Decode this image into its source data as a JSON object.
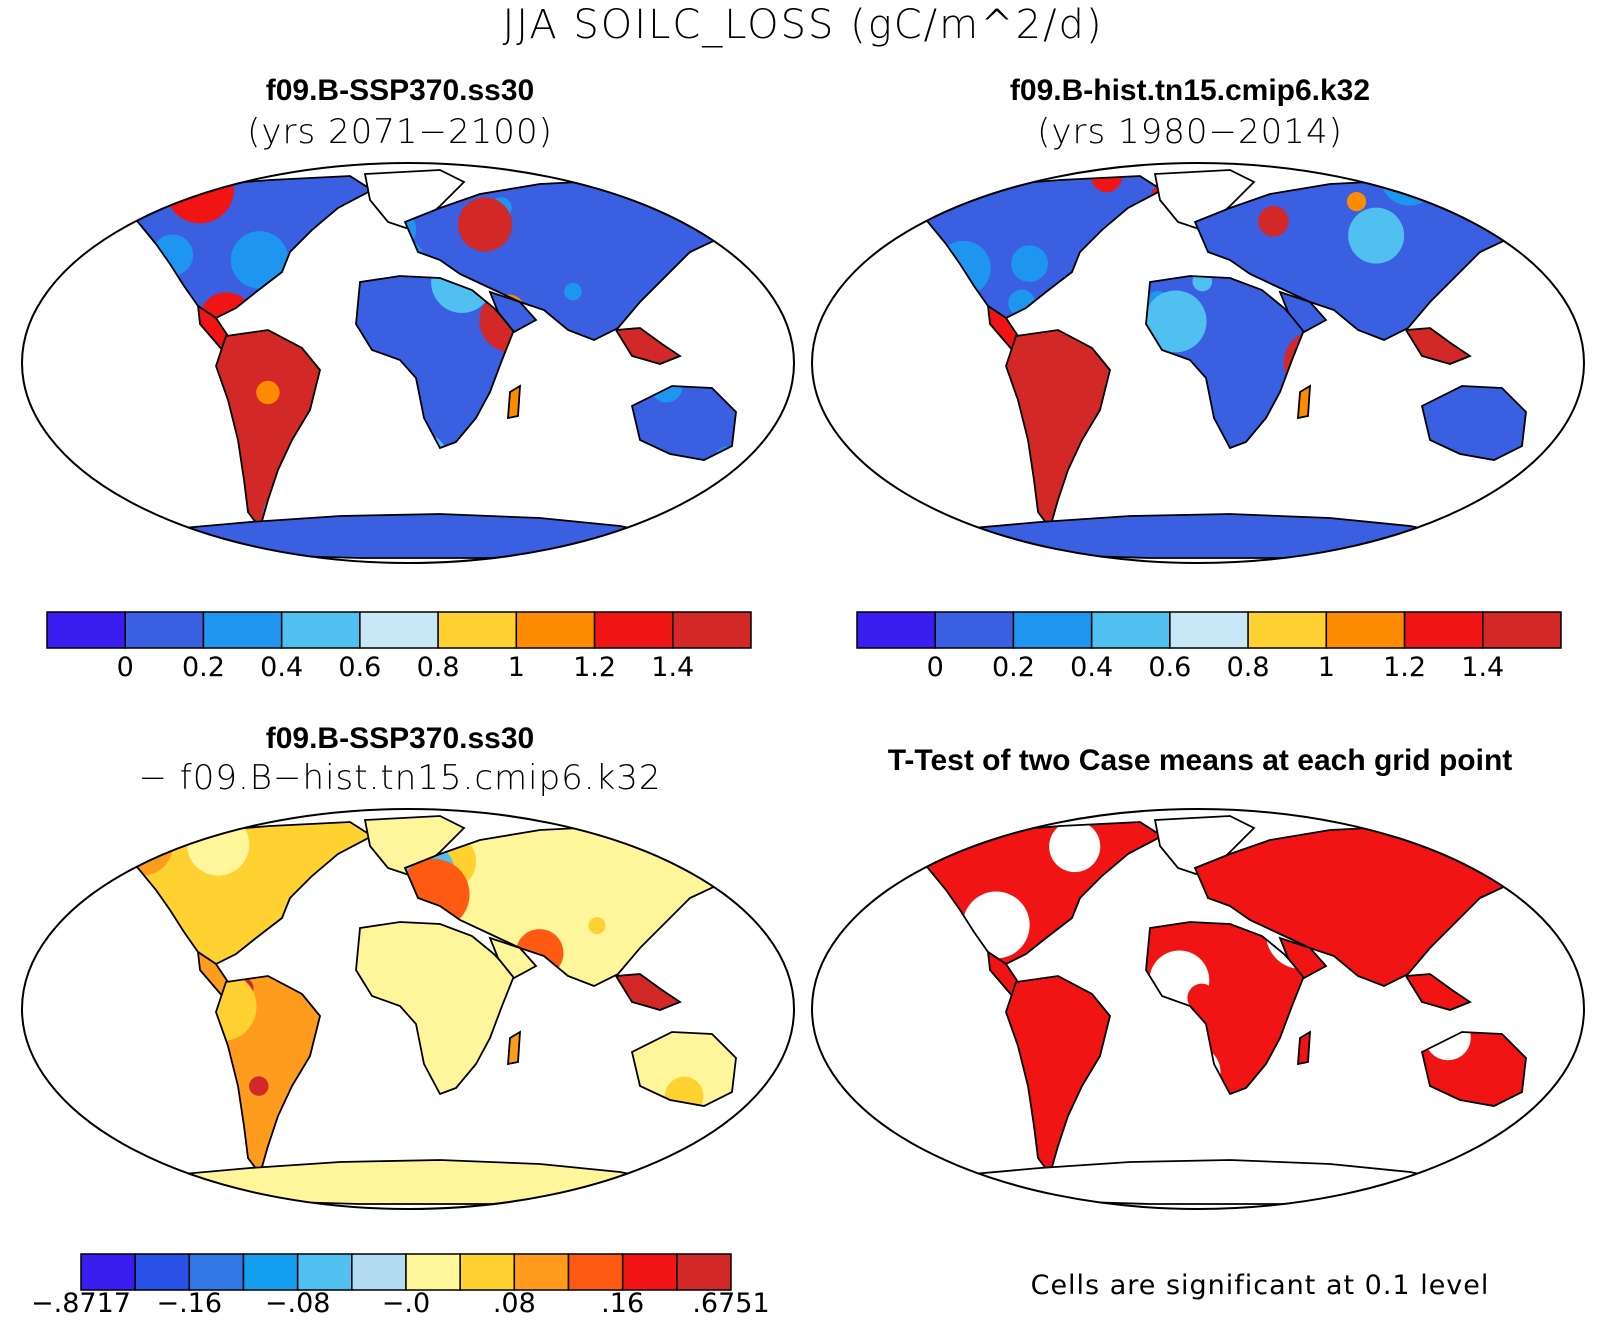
{
  "main_title": "JJA SOILC_LOSS (gC/m^2/d)",
  "panels": [
    {
      "id": "ssp370",
      "title": "f09.B-SSP370.ss30",
      "subtitle": "(yrs 2071−2100)"
    },
    {
      "id": "hist",
      "title": "f09.B-hist.tn15.cmip6.k32",
      "subtitle": "(yrs 1980−2014)"
    },
    {
      "id": "diff",
      "title": "f09.B-SSP370.ss30",
      "subtitle": "− f09.B−hist.tn15.cmip6.k32"
    },
    {
      "id": "ttest",
      "title": "T-Test of two Case means at each grid point",
      "subtitle": ""
    }
  ],
  "colorbars": {
    "absolute": {
      "colors": [
        "#3a1ef0",
        "#3a5fe0",
        "#1e96f0",
        "#50c0f0",
        "#c8e8f8",
        "#ffd232",
        "#ff8c00",
        "#f01414",
        "#d22828"
      ],
      "labels": [
        "0",
        "0.2",
        "0.4",
        "0.6",
        "0.8",
        "1",
        "1.2",
        "1.4"
      ]
    },
    "difference": {
      "colors": [
        "#3a1ef0",
        "#2850e6",
        "#3278e6",
        "#14a0f0",
        "#50c0f0",
        "#b4dcf0",
        "#fff59a",
        "#ffd232",
        "#ff9c1e",
        "#ff5a14",
        "#f01414",
        "#d22828"
      ],
      "labels": [
        "−.8717",
        "−.16",
        "−.08",
        "−.0",
        ".08",
        ".16",
        ".6751"
      ]
    }
  },
  "ttest_note": "Cells are significant at 0.1 level"
}
